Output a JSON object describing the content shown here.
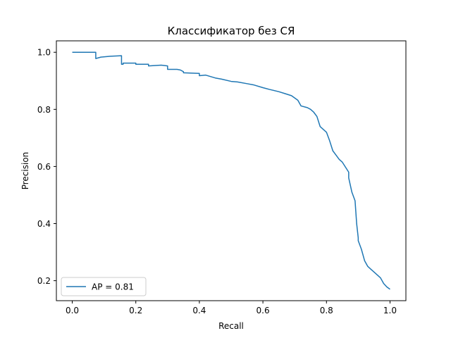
{
  "chart_data": {
    "type": "line",
    "title": "Классификатор   без СЯ",
    "xlabel": "Recall",
    "ylabel": "Precision",
    "xlim": [
      -0.05,
      1.05
    ],
    "ylim": [
      0.13,
      1.04
    ],
    "xticks": [
      {
        "value": 0.0,
        "label": "0.0"
      },
      {
        "value": 0.2,
        "label": "0.2"
      },
      {
        "value": 0.4,
        "label": "0.4"
      },
      {
        "value": 0.6,
        "label": "0.6"
      },
      {
        "value": 0.8,
        "label": "0.8"
      },
      {
        "value": 1.0,
        "label": "1.0"
      }
    ],
    "yticks": [
      {
        "value": 0.2,
        "label": "0.2"
      },
      {
        "value": 0.4,
        "label": "0.4"
      },
      {
        "value": 0.6,
        "label": "0.6"
      },
      {
        "value": 0.8,
        "label": "0.8"
      },
      {
        "value": 1.0,
        "label": "1.0"
      }
    ],
    "grid": false,
    "legend_position": "lower-left",
    "series": [
      {
        "name": "AP = 0.81",
        "color": "#1f77b4",
        "x": [
          0.0,
          0.074,
          0.074,
          0.09,
          0.12,
          0.155,
          0.155,
          0.16,
          0.16,
          0.2,
          0.2,
          0.24,
          0.24,
          0.28,
          0.3,
          0.3,
          0.33,
          0.34,
          0.35,
          0.35,
          0.4,
          0.4,
          0.42,
          0.45,
          0.47,
          0.5,
          0.52,
          0.55,
          0.57,
          0.6,
          0.62,
          0.65,
          0.67,
          0.69,
          0.7,
          0.71,
          0.72,
          0.74,
          0.75,
          0.76,
          0.77,
          0.78,
          0.8,
          0.81,
          0.82,
          0.83,
          0.84,
          0.85,
          0.87,
          0.87,
          0.88,
          0.89,
          0.895,
          0.9,
          0.9,
          0.91,
          0.92,
          0.93,
          0.94,
          0.95,
          0.97,
          0.98,
          0.99,
          1.0
        ],
        "y": [
          1.0,
          1.0,
          0.978,
          0.983,
          0.986,
          0.988,
          0.958,
          0.958,
          0.962,
          0.962,
          0.958,
          0.958,
          0.952,
          0.955,
          0.952,
          0.94,
          0.94,
          0.938,
          0.932,
          0.928,
          0.926,
          0.918,
          0.92,
          0.91,
          0.906,
          0.898,
          0.896,
          0.89,
          0.886,
          0.876,
          0.87,
          0.862,
          0.855,
          0.848,
          0.84,
          0.832,
          0.812,
          0.806,
          0.8,
          0.79,
          0.775,
          0.74,
          0.72,
          0.69,
          0.655,
          0.64,
          0.625,
          0.615,
          0.58,
          0.56,
          0.51,
          0.48,
          0.4,
          0.35,
          0.34,
          0.31,
          0.27,
          0.25,
          0.24,
          0.23,
          0.21,
          0.19,
          0.178,
          0.17
        ]
      }
    ]
  }
}
